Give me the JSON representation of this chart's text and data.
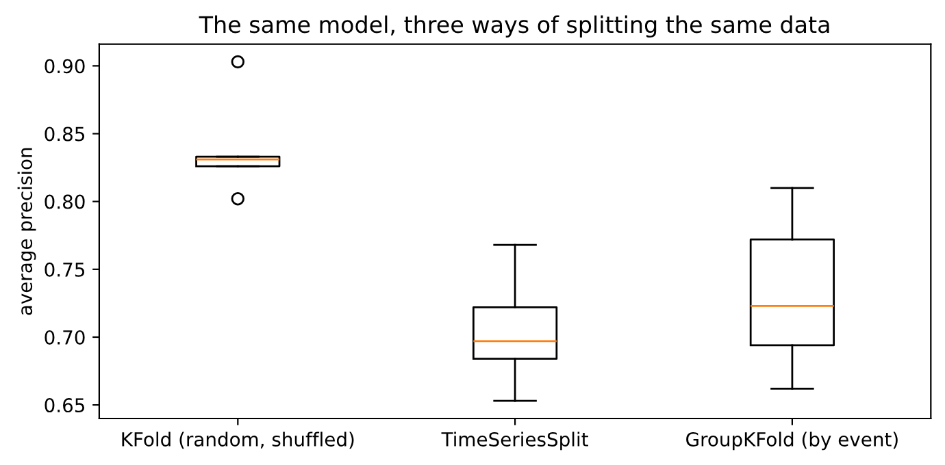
{
  "chart_data": {
    "type": "box",
    "title": "The same model, three ways of splitting the same data",
    "ylabel": "average precision",
    "categories": [
      "KFold (random, shuffled)",
      "TimeSeriesSplit",
      "GroupKFold (by event)"
    ],
    "boxes": [
      {
        "low": 0.826,
        "q1": 0.826,
        "median": 0.831,
        "q3": 0.833,
        "high": 0.833,
        "outliers": [
          0.903,
          0.802
        ]
      },
      {
        "low": 0.653,
        "q1": 0.684,
        "median": 0.697,
        "q3": 0.722,
        "high": 0.768
      },
      {
        "low": 0.662,
        "q1": 0.694,
        "median": 0.723,
        "q3": 0.772,
        "high": 0.81
      }
    ],
    "ylim": [
      0.64,
      0.916
    ],
    "yticks": [
      0.65,
      {
        "value": 0.7,
        "label": "0.70"
      },
      0.75,
      {
        "value": 0.8,
        "label": "0.80"
      },
      0.85,
      {
        "value": 0.9,
        "label": "0.90"
      }
    ],
    "grid": false
  }
}
